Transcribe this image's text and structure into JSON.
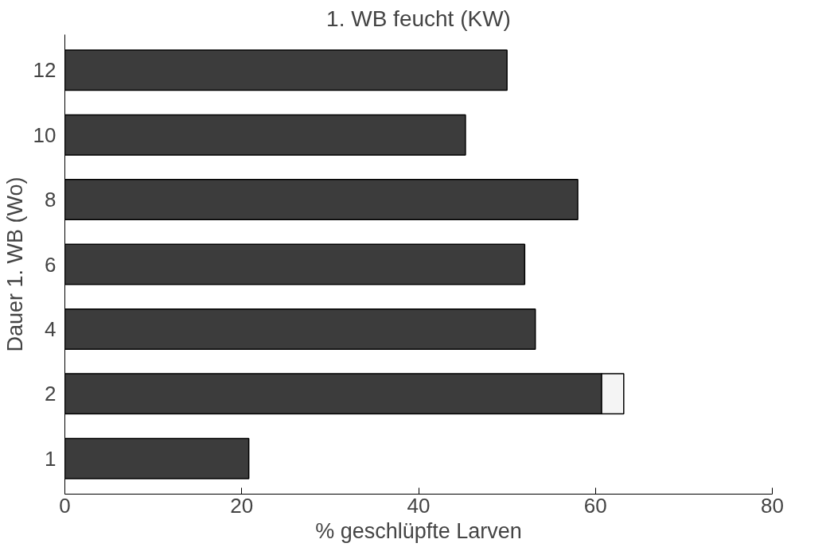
{
  "chart_data": {
    "type": "bar",
    "orientation": "horizontal",
    "stacked": true,
    "title": "1. WB feucht (KW)",
    "xlabel": "% geschlüpfte Larven",
    "ylabel": "Dauer 1. WB (Wo)",
    "categories": [
      "12",
      "10",
      "8",
      "6",
      "4",
      "2",
      "1"
    ],
    "series": [
      {
        "color": "#3c3c3c",
        "values": [
          50,
          45.3,
          58,
          52,
          53.2,
          60.7,
          20.8
        ]
      },
      {
        "color": "#f4f4f4",
        "values": [
          null,
          null,
          null,
          null,
          null,
          2.5,
          null
        ]
      }
    ],
    "xlim": [
      0,
      80
    ],
    "xticks": [
      0,
      20,
      40,
      60,
      80
    ],
    "grid": false
  }
}
